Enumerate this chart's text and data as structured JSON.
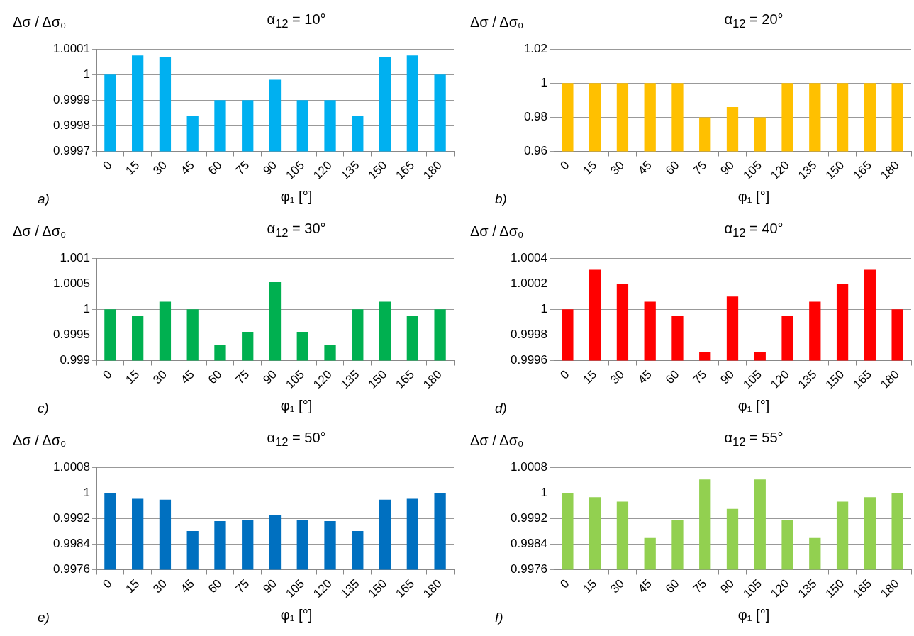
{
  "chart_data": [
    {
      "type": "bar",
      "title": "α$_{12}$ = 10°",
      "ylabel": "Δσ / Δσ₀",
      "xlabel": "φ₁ [°]",
      "annotations": [
        "a)"
      ],
      "categories": [
        "0",
        "15",
        "30",
        "45",
        "60",
        "75",
        "90",
        "105",
        "120",
        "135",
        "150",
        "165",
        "180"
      ],
      "values": [
        1,
        1.000075,
        1.00007,
        0.99984,
        0.9999,
        0.9999,
        0.99998,
        0.9999,
        0.9999,
        0.99984,
        1.00007,
        1.000075,
        1
      ],
      "color": "#00b0f0",
      "ylim": [
        0.9997,
        1.0001
      ],
      "yticks": [
        0.9997,
        0.9998,
        0.9999,
        1,
        1.0001
      ],
      "grid": "y"
    },
    {
      "type": "bar",
      "title": "α$_{12}$ = 20°",
      "ylabel": "Δσ / Δσ₀",
      "xlabel": "φ₁ [°]",
      "annotations": [
        "b)"
      ],
      "categories": [
        "0",
        "15",
        "30",
        "45",
        "60",
        "75",
        "90",
        "105",
        "120",
        "135",
        "150",
        "165",
        "180"
      ],
      "values": [
        1,
        1,
        1,
        1,
        1,
        0.98,
        0.986,
        0.98,
        1,
        1,
        1,
        1,
        1
      ],
      "color": "#ffc000",
      "ylim": [
        0.96,
        1.02
      ],
      "yticks": [
        0.96,
        0.98,
        1,
        1.02
      ],
      "grid": "y"
    },
    {
      "type": "bar",
      "title": "α$_{12}$ = 30°",
      "ylabel": "Δσ / Δσ₀",
      "xlabel": "φ₁ [°]",
      "annotations": [
        "c)"
      ],
      "categories": [
        "0",
        "15",
        "30",
        "45",
        "60",
        "75",
        "90",
        "105",
        "120",
        "135",
        "150",
        "165",
        "180"
      ],
      "values": [
        1,
        0.99988,
        1.00015,
        1,
        0.99931,
        0.99956,
        1.00053,
        0.99956,
        0.99931,
        1,
        1.00015,
        0.99988,
        1
      ],
      "color": "#00b050",
      "ylim": [
        0.999,
        1.001
      ],
      "yticks": [
        0.999,
        0.9995,
        1,
        1.0005,
        1.001
      ],
      "grid": "y"
    },
    {
      "type": "bar",
      "title": "α$_{12}$ = 40°",
      "ylabel": "Δσ / Δσ₀",
      "xlabel": "φ₁ [°]",
      "annotations": [
        "d)"
      ],
      "categories": [
        "0",
        "15",
        "30",
        "45",
        "60",
        "75",
        "90",
        "105",
        "120",
        "135",
        "150",
        "165",
        "180"
      ],
      "values": [
        1,
        1.00031,
        1.0002,
        1.00006,
        0.99995,
        0.99967,
        1.0001,
        0.99967,
        0.99995,
        1.00006,
        1.0002,
        1.00031,
        1
      ],
      "color": "#ff0000",
      "ylim": [
        0.9996,
        1.0004
      ],
      "yticks": [
        0.9996,
        0.9998,
        1,
        1.0002,
        1.0004
      ],
      "grid": "y"
    },
    {
      "type": "bar",
      "title": "α$_{12}$ = 50°",
      "ylabel": "Δσ / Δσ₀",
      "xlabel": "φ₁ [°]",
      "annotations": [
        "e)"
      ],
      "categories": [
        "0",
        "15",
        "30",
        "45",
        "60",
        "75",
        "90",
        "105",
        "120",
        "135",
        "150",
        "165",
        "180"
      ],
      "values": [
        1,
        0.99982,
        0.99979,
        0.99881,
        0.99912,
        0.99915,
        0.99931,
        0.99915,
        0.99912,
        0.99881,
        0.99979,
        0.99982,
        1
      ],
      "color": "#0070c0",
      "ylim": [
        0.9976,
        1.0008
      ],
      "yticks": [
        0.9976,
        0.9984,
        0.9992,
        1,
        1.0008
      ],
      "grid": "y"
    },
    {
      "type": "bar",
      "title": "α$_{12}$ = 55°",
      "ylabel": "Δσ / Δσ₀",
      "xlabel": "φ₁ [°]",
      "annotations": [
        "f)"
      ],
      "categories": [
        "0",
        "15",
        "30",
        "45",
        "60",
        "75",
        "90",
        "105",
        "120",
        "135",
        "150",
        "165",
        "180"
      ],
      "values": [
        1,
        0.99987,
        0.99973,
        0.99859,
        0.99914,
        1.00042,
        0.9995,
        1.00042,
        0.99914,
        0.99859,
        0.99973,
        0.99987,
        1
      ],
      "color": "#92d050",
      "ylim": [
        0.9976,
        1.0008
      ],
      "yticks": [
        0.9976,
        0.9984,
        0.9992,
        1,
        1.0008
      ],
      "grid": "y"
    }
  ]
}
